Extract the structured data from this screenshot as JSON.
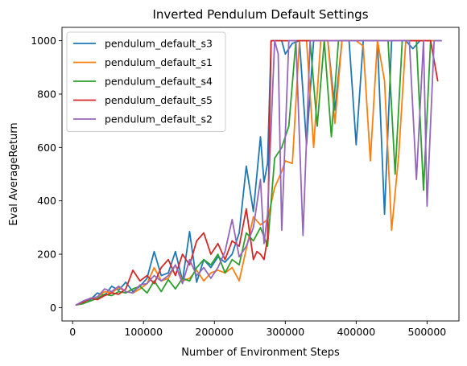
{
  "chart_data": {
    "type": "line",
    "title": "Inverted Pendulum Default Settings",
    "xlabel": "Number of Environment Steps",
    "ylabel": "Eval AverageReturn",
    "xlim": [
      -15000,
      545000
    ],
    "ylim": [
      -50,
      1050
    ],
    "xticks": [
      0,
      100000,
      200000,
      300000,
      400000,
      500000
    ],
    "xtick_labels": [
      "0",
      "100000",
      "200000",
      "300000",
      "400000",
      "500000"
    ],
    "yticks": [
      0,
      200,
      400,
      600,
      800,
      1000
    ],
    "ytick_labels": [
      "0",
      "200",
      "400",
      "600",
      "800",
      "1000"
    ],
    "grid": false,
    "legend_position": "top-left",
    "series": [
      {
        "name": "pendulum_default_s3",
        "color": "#1f77b4",
        "x": [
          5000,
          15000,
          25000,
          35000,
          45000,
          55000,
          65000,
          75000,
          85000,
          95000,
          105000,
          115000,
          125000,
          135000,
          145000,
          155000,
          165000,
          175000,
          185000,
          195000,
          205000,
          215000,
          225000,
          235000,
          245000,
          255000,
          265000,
          270000,
          275000,
          280000,
          285000,
          290000,
          295000,
          300000,
          310000,
          320000,
          330000,
          340000,
          350000,
          360000,
          370000,
          380000,
          390000,
          400000,
          410000,
          420000,
          430000,
          440000,
          450000,
          460000,
          470000,
          480000,
          490000,
          500000,
          510000,
          520000
        ],
        "y": [
          10,
          20,
          30,
          55,
          45,
          80,
          65,
          95,
          60,
          80,
          110,
          210,
          120,
          130,
          210,
          100,
          285,
          95,
          180,
          150,
          190,
          170,
          200,
          280,
          530,
          360,
          640,
          470,
          540,
          1000,
          1000,
          1000,
          1000,
          950,
          990,
          1000,
          610,
          1000,
          1000,
          1000,
          740,
          1000,
          1000,
          610,
          1000,
          1000,
          1000,
          350,
          1000,
          1000,
          1000,
          970,
          1000,
          1000,
          1000,
          1000
        ]
      },
      {
        "name": "pendulum_default_s1",
        "color": "#ff7f0e",
        "x": [
          5000,
          15000,
          25000,
          35000,
          45000,
          55000,
          65000,
          75000,
          85000,
          95000,
          105000,
          115000,
          125000,
          135000,
          145000,
          155000,
          165000,
          175000,
          185000,
          195000,
          205000,
          215000,
          225000,
          235000,
          245000,
          255000,
          265000,
          275000,
          285000,
          295000,
          300000,
          310000,
          320000,
          330000,
          340000,
          350000,
          360000,
          370000,
          380000,
          390000,
          400000,
          410000,
          420000,
          430000,
          440000,
          450000,
          460000,
          470000,
          480000,
          490000,
          500000,
          510000
        ],
        "y": [
          10,
          18,
          35,
          40,
          60,
          55,
          75,
          60,
          55,
          70,
          90,
          150,
          100,
          110,
          160,
          100,
          110,
          140,
          100,
          130,
          140,
          130,
          150,
          100,
          220,
          340,
          310,
          330,
          450,
          510,
          550,
          540,
          1000,
          1000,
          600,
          1000,
          1000,
          690,
          1000,
          1000,
          1000,
          980,
          550,
          1000,
          850,
          290,
          570,
          1000,
          1000,
          1000,
          1000,
          1000
        ]
      },
      {
        "name": "pendulum_default_s4",
        "color": "#2ca02c",
        "x": [
          5000,
          15000,
          25000,
          35000,
          45000,
          55000,
          65000,
          75000,
          85000,
          95000,
          105000,
          115000,
          125000,
          135000,
          145000,
          155000,
          165000,
          175000,
          185000,
          195000,
          205000,
          215000,
          225000,
          235000,
          245000,
          255000,
          265000,
          275000,
          285000,
          295000,
          305000,
          315000,
          325000,
          335000,
          345000,
          355000,
          365000,
          375000,
          385000,
          395000,
          405000,
          415000,
          425000,
          435000,
          445000,
          455000,
          465000,
          475000,
          485000,
          495000,
          505000
        ],
        "y": [
          10,
          15,
          25,
          35,
          50,
          45,
          60,
          55,
          70,
          80,
          55,
          100,
          60,
          105,
          70,
          110,
          100,
          150,
          180,
          160,
          200,
          130,
          180,
          160,
          280,
          250,
          300,
          230,
          560,
          600,
          680,
          1000,
          1000,
          1000,
          680,
          1000,
          640,
          1000,
          1000,
          1000,
          1000,
          1000,
          1000,
          1000,
          1000,
          500,
          1000,
          1000,
          1000,
          440,
          1000
        ]
      },
      {
        "name": "pendulum_default_s5",
        "color": "#d62728",
        "x": [
          5000,
          15000,
          25000,
          35000,
          45000,
          55000,
          65000,
          75000,
          85000,
          95000,
          105000,
          115000,
          125000,
          135000,
          145000,
          155000,
          165000,
          175000,
          185000,
          195000,
          205000,
          215000,
          225000,
          235000,
          245000,
          255000,
          260000,
          265000,
          270000,
          275000,
          280000,
          285000,
          290000,
          295000,
          305000,
          315000,
          325000,
          335000,
          345000,
          355000,
          365000,
          375000,
          385000,
          395000,
          405000,
          415000,
          425000,
          435000,
          445000,
          455000,
          465000,
          475000,
          485000,
          495000,
          505000,
          515000
        ],
        "y": [
          10,
          20,
          35,
          30,
          45,
          55,
          50,
          70,
          140,
          100,
          120,
          90,
          150,
          180,
          120,
          200,
          160,
          250,
          280,
          200,
          240,
          180,
          250,
          230,
          370,
          180,
          210,
          200,
          180,
          260,
          1000,
          1000,
          1000,
          1000,
          1000,
          1000,
          1000,
          1000,
          1000,
          1000,
          1000,
          1000,
          1000,
          1000,
          1000,
          1000,
          1000,
          1000,
          1000,
          1000,
          1000,
          1000,
          1000,
          1000,
          1000,
          850
        ]
      },
      {
        "name": "pendulum_default_s2",
        "color": "#9467bd",
        "x": [
          5000,
          15000,
          25000,
          35000,
          45000,
          55000,
          65000,
          75000,
          85000,
          95000,
          105000,
          115000,
          125000,
          135000,
          145000,
          155000,
          165000,
          175000,
          185000,
          195000,
          205000,
          215000,
          225000,
          235000,
          245000,
          255000,
          265000,
          270000,
          275000,
          285000,
          290000,
          295000,
          305000,
          315000,
          325000,
          335000,
          345000,
          355000,
          365000,
          375000,
          385000,
          395000,
          405000,
          415000,
          425000,
          435000,
          445000,
          455000,
          465000,
          475000,
          485000,
          495000,
          500000,
          510000,
          520000
        ],
        "y": [
          10,
          25,
          35,
          40,
          70,
          60,
          80,
          60,
          55,
          85,
          90,
          120,
          100,
          120,
          160,
          90,
          180,
          120,
          150,
          110,
          150,
          210,
          330,
          190,
          230,
          300,
          480,
          240,
          350,
          1000,
          950,
          290,
          1000,
          1000,
          270,
          1000,
          1000,
          1000,
          1000,
          1000,
          1000,
          1000,
          1000,
          1000,
          1000,
          1000,
          1000,
          1000,
          1000,
          1000,
          480,
          1000,
          380,
          1000,
          1000
        ]
      }
    ]
  }
}
